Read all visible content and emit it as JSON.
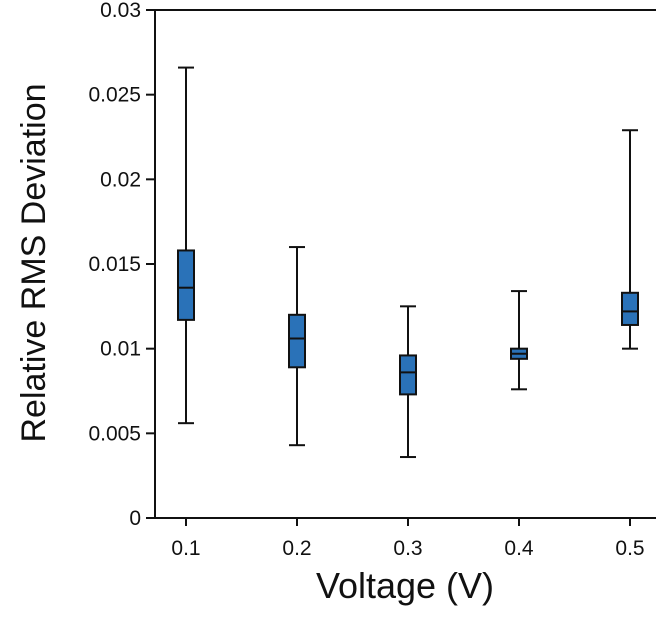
{
  "chart_data": {
    "type": "box",
    "xlabel": "Voltage (V)",
    "ylabel": "Relative RMS Deviation",
    "ylim": [
      0,
      0.03
    ],
    "yticks": [
      "0",
      "0.005",
      "0.01",
      "0.015",
      "0.02",
      "0.025",
      "0.03"
    ],
    "categories": [
      "0.1",
      "0.2",
      "0.3",
      "0.4",
      "0.5"
    ],
    "boxes": [
      {
        "whisker_low": 0.0056,
        "q1": 0.0117,
        "median": 0.0136,
        "q3": 0.0158,
        "whisker_high": 0.0266
      },
      {
        "whisker_low": 0.0043,
        "q1": 0.0089,
        "median": 0.0106,
        "q3": 0.012,
        "whisker_high": 0.016
      },
      {
        "whisker_low": 0.0036,
        "q1": 0.0073,
        "median": 0.0086,
        "q3": 0.0096,
        "whisker_high": 0.0125
      },
      {
        "whisker_low": 0.0076,
        "q1": 0.0094,
        "median": 0.0097,
        "q3": 0.01,
        "whisker_high": 0.0134
      },
      {
        "whisker_low": 0.01,
        "q1": 0.0114,
        "median": 0.0122,
        "q3": 0.0133,
        "whisker_high": 0.0229
      }
    ],
    "box_color": "#2a72b8",
    "grid": false
  }
}
